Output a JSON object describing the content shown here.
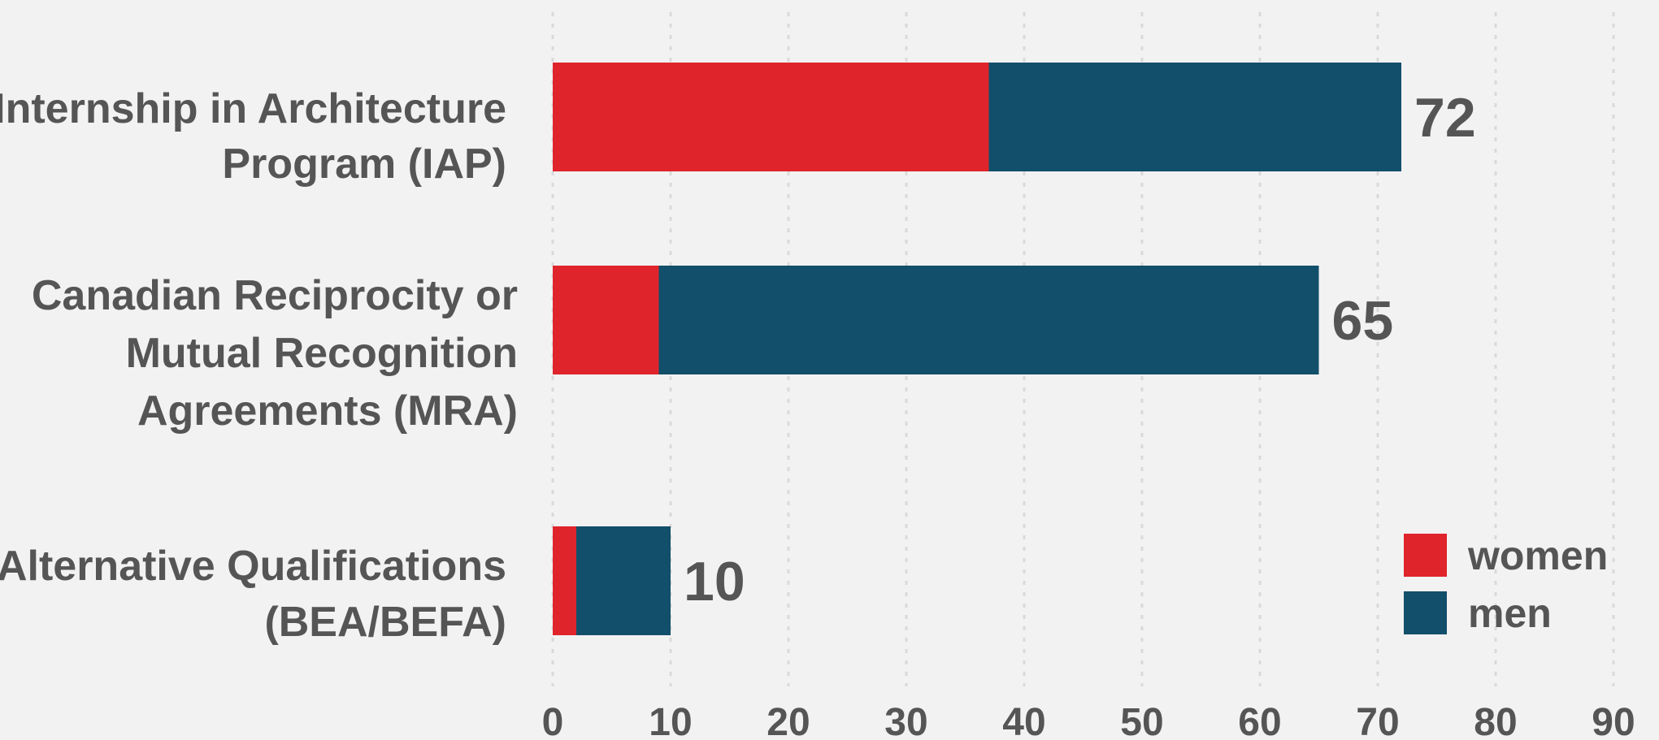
{
  "chart_data": {
    "type": "bar",
    "orientation": "horizontal",
    "stacked": true,
    "categories": [
      [
        "Internship in Architecture",
        "Program (IAP)"
      ],
      [
        "Canadian Reciprocity or",
        "Mutual Recognition",
        "Agreements (MRA)"
      ],
      [
        "Alternative Qualifications",
        "(BEA/BEFA)"
      ]
    ],
    "series": [
      {
        "name": "women",
        "color": "#e0242b",
        "values": [
          37,
          9,
          2
        ]
      },
      {
        "name": "men",
        "color": "#114f6a",
        "values": [
          35,
          56,
          8
        ]
      }
    ],
    "totals": [
      "72",
      "65",
      "10"
    ],
    "xlim": [
      0,
      90
    ],
    "xticks": [
      "0",
      "10",
      "20",
      "30",
      "40",
      "50",
      "60",
      "70",
      "80",
      "90"
    ],
    "grid": true,
    "legend_position": "bottom-right",
    "xlabel": "",
    "ylabel": ""
  }
}
